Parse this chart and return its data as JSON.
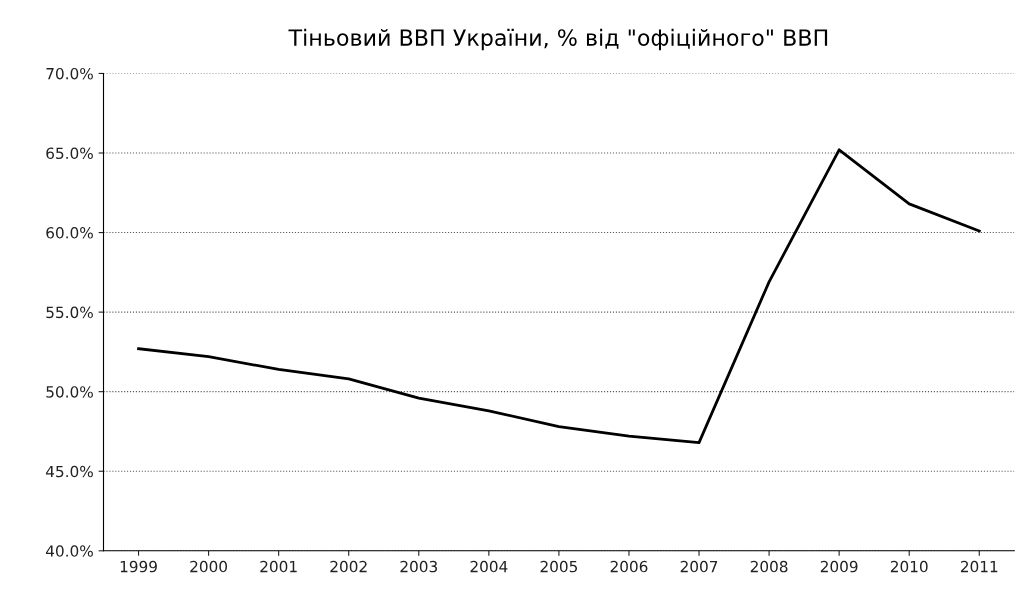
{
  "chart_data": {
    "type": "line",
    "title": "Тіньовий ВВП України, % від \"офіційного\" ВВП",
    "categories": [
      "1999",
      "2000",
      "2001",
      "2002",
      "2003",
      "2004",
      "2005",
      "2006",
      "2007",
      "2008",
      "2009",
      "2010",
      "2011"
    ],
    "series": [
      {
        "color": "#000000",
        "values": [
          52.7,
          52.2,
          51.4,
          50.8,
          49.6,
          48.8,
          47.8,
          47.2,
          46.8,
          56.9,
          65.2,
          61.8,
          60.1
        ]
      }
    ],
    "ylim": [
      40,
      70
    ],
    "yticks": [
      {
        "value": 40,
        "label": "40.0%"
      },
      {
        "value": 45,
        "label": "45.0%"
      },
      {
        "value": 50,
        "label": "50.0%"
      },
      {
        "value": 55,
        "label": "55.0%"
      },
      {
        "value": 60,
        "label": "60.0%"
      },
      {
        "value": 65,
        "label": "65.0%"
      },
      {
        "value": 70,
        "label": "70.0%"
      }
    ],
    "grid": "y",
    "legend": false,
    "marker": "none",
    "line_style": "solid"
  }
}
